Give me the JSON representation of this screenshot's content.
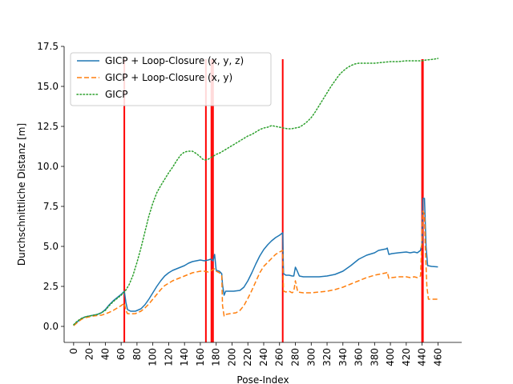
{
  "chart_data": {
    "type": "line",
    "xlabel": "Pose-Index",
    "ylabel": "Durchschnittliche Distanz [m]",
    "xlim": [
      -12,
      490
    ],
    "ylim": [
      -1.0,
      17.5
    ],
    "xticks": [
      0,
      20,
      40,
      60,
      80,
      100,
      120,
      140,
      160,
      180,
      200,
      220,
      240,
      260,
      280,
      300,
      320,
      340,
      360,
      380,
      400,
      420,
      440,
      460
    ],
    "yticks": [
      0.0,
      2.5,
      5.0,
      7.5,
      10.0,
      12.5,
      15.0,
      17.5
    ],
    "ytick_labels": [
      "0.0",
      "2.5",
      "5.0",
      "7.5",
      "10.0",
      "12.5",
      "15.0",
      "17.5"
    ],
    "legend_position": "upper-left",
    "series": [
      {
        "name": "GICP + Loop-Closure (x, y, z)",
        "color": "#1f77b4",
        "style": "solid",
        "points": [
          [
            0,
            0.1
          ],
          [
            5,
            0.3
          ],
          [
            10,
            0.5
          ],
          [
            15,
            0.6
          ],
          [
            20,
            0.65
          ],
          [
            25,
            0.7
          ],
          [
            30,
            0.75
          ],
          [
            35,
            0.85
          ],
          [
            40,
            1.05
          ],
          [
            45,
            1.35
          ],
          [
            50,
            1.6
          ],
          [
            55,
            1.8
          ],
          [
            60,
            2.0
          ],
          [
            64,
            2.2
          ],
          [
            66,
            1.5
          ],
          [
            68,
            1.05
          ],
          [
            72,
            0.95
          ],
          [
            78,
            0.95
          ],
          [
            85,
            1.1
          ],
          [
            90,
            1.35
          ],
          [
            95,
            1.7
          ],
          [
            100,
            2.1
          ],
          [
            105,
            2.5
          ],
          [
            110,
            2.85
          ],
          [
            115,
            3.15
          ],
          [
            120,
            3.35
          ],
          [
            125,
            3.5
          ],
          [
            130,
            3.6
          ],
          [
            135,
            3.7
          ],
          [
            140,
            3.8
          ],
          [
            145,
            3.95
          ],
          [
            150,
            4.05
          ],
          [
            155,
            4.1
          ],
          [
            160,
            4.15
          ],
          [
            165,
            4.1
          ],
          [
            170,
            4.15
          ],
          [
            173,
            4.2
          ],
          [
            176,
            4.1
          ],
          [
            178,
            4.5
          ],
          [
            180,
            3.5
          ],
          [
            184,
            3.45
          ],
          [
            187,
            3.3
          ],
          [
            188,
            2.6
          ],
          [
            190,
            1.95
          ],
          [
            192,
            2.2
          ],
          [
            196,
            2.2
          ],
          [
            202,
            2.2
          ],
          [
            210,
            2.25
          ],
          [
            215,
            2.45
          ],
          [
            220,
            2.85
          ],
          [
            225,
            3.35
          ],
          [
            230,
            3.9
          ],
          [
            235,
            4.4
          ],
          [
            240,
            4.8
          ],
          [
            245,
            5.1
          ],
          [
            250,
            5.35
          ],
          [
            255,
            5.55
          ],
          [
            260,
            5.7
          ],
          [
            264,
            5.85
          ],
          [
            265,
            3.3
          ],
          [
            268,
            3.2
          ],
          [
            272,
            3.2
          ],
          [
            276,
            3.15
          ],
          [
            278,
            3.15
          ],
          [
            280,
            3.7
          ],
          [
            282,
            3.5
          ],
          [
            285,
            3.15
          ],
          [
            290,
            3.1
          ],
          [
            300,
            3.1
          ],
          [
            310,
            3.1
          ],
          [
            320,
            3.15
          ],
          [
            330,
            3.25
          ],
          [
            340,
            3.45
          ],
          [
            350,
            3.8
          ],
          [
            360,
            4.2
          ],
          [
            370,
            4.45
          ],
          [
            380,
            4.6
          ],
          [
            385,
            4.75
          ],
          [
            390,
            4.8
          ],
          [
            395,
            4.85
          ],
          [
            396,
            4.9
          ],
          [
            398,
            4.5
          ],
          [
            402,
            4.55
          ],
          [
            410,
            4.6
          ],
          [
            420,
            4.65
          ],
          [
            425,
            4.6
          ],
          [
            430,
            4.65
          ],
          [
            434,
            4.6
          ],
          [
            438,
            4.75
          ],
          [
            440,
            5.2
          ],
          [
            441,
            8.0
          ],
          [
            443,
            8.0
          ],
          [
            445,
            5.0
          ],
          [
            447,
            3.8
          ],
          [
            452,
            3.75
          ],
          [
            460,
            3.72
          ]
        ]
      },
      {
        "name": "GICP + Loop-Closure (x, y)",
        "color": "#ff7f0e",
        "style": "dashed",
        "points": [
          [
            0,
            0.05
          ],
          [
            5,
            0.25
          ],
          [
            10,
            0.45
          ],
          [
            15,
            0.55
          ],
          [
            20,
            0.6
          ],
          [
            25,
            0.65
          ],
          [
            30,
            0.68
          ],
          [
            35,
            0.7
          ],
          [
            40,
            0.78
          ],
          [
            45,
            0.88
          ],
          [
            50,
            1.0
          ],
          [
            55,
            1.15
          ],
          [
            60,
            1.3
          ],
          [
            64,
            1.45
          ],
          [
            66,
            1.0
          ],
          [
            68,
            0.8
          ],
          [
            72,
            0.78
          ],
          [
            78,
            0.8
          ],
          [
            85,
            0.95
          ],
          [
            90,
            1.15
          ],
          [
            95,
            1.4
          ],
          [
            100,
            1.7
          ],
          [
            105,
            2.0
          ],
          [
            110,
            2.3
          ],
          [
            115,
            2.55
          ],
          [
            120,
            2.7
          ],
          [
            125,
            2.85
          ],
          [
            130,
            2.95
          ],
          [
            135,
            3.05
          ],
          [
            140,
            3.15
          ],
          [
            145,
            3.25
          ],
          [
            150,
            3.35
          ],
          [
            155,
            3.4
          ],
          [
            160,
            3.45
          ],
          [
            165,
            3.45
          ],
          [
            170,
            3.4
          ],
          [
            174,
            3.5
          ],
          [
            176,
            3.55
          ],
          [
            178,
            3.6
          ],
          [
            180,
            3.45
          ],
          [
            184,
            3.35
          ],
          [
            187,
            3.2
          ],
          [
            188,
            1.3
          ],
          [
            190,
            0.65
          ],
          [
            192,
            0.75
          ],
          [
            198,
            0.8
          ],
          [
            205,
            0.85
          ],
          [
            210,
            1.0
          ],
          [
            215,
            1.3
          ],
          [
            220,
            1.75
          ],
          [
            225,
            2.25
          ],
          [
            230,
            2.8
          ],
          [
            235,
            3.35
          ],
          [
            240,
            3.75
          ],
          [
            245,
            4.0
          ],
          [
            250,
            4.25
          ],
          [
            255,
            4.5
          ],
          [
            260,
            4.65
          ],
          [
            264,
            4.75
          ],
          [
            265,
            2.2
          ],
          [
            268,
            2.15
          ],
          [
            272,
            2.2
          ],
          [
            276,
            2.1
          ],
          [
            278,
            2.2
          ],
          [
            280,
            2.85
          ],
          [
            283,
            2.15
          ],
          [
            290,
            2.1
          ],
          [
            300,
            2.1
          ],
          [
            310,
            2.15
          ],
          [
            320,
            2.2
          ],
          [
            330,
            2.3
          ],
          [
            340,
            2.45
          ],
          [
            350,
            2.65
          ],
          [
            360,
            2.85
          ],
          [
            370,
            3.05
          ],
          [
            380,
            3.2
          ],
          [
            390,
            3.3
          ],
          [
            395,
            3.35
          ],
          [
            396,
            3.4
          ],
          [
            398,
            3.0
          ],
          [
            402,
            3.05
          ],
          [
            410,
            3.1
          ],
          [
            420,
            3.1
          ],
          [
            425,
            3.05
          ],
          [
            430,
            3.1
          ],
          [
            434,
            3.05
          ],
          [
            438,
            3.15
          ],
          [
            440,
            5.8
          ],
          [
            441,
            7.2
          ],
          [
            443,
            7.0
          ],
          [
            444,
            5.0
          ],
          [
            446,
            2.5
          ],
          [
            448,
            1.7
          ],
          [
            452,
            1.7
          ],
          [
            460,
            1.7
          ]
        ]
      },
      {
        "name": "GICP",
        "color": "#2ca02c",
        "style": "dotted",
        "points": [
          [
            0,
            0.1
          ],
          [
            5,
            0.35
          ],
          [
            10,
            0.5
          ],
          [
            15,
            0.6
          ],
          [
            20,
            0.65
          ],
          [
            25,
            0.7
          ],
          [
            30,
            0.75
          ],
          [
            35,
            0.85
          ],
          [
            40,
            1.0
          ],
          [
            45,
            1.3
          ],
          [
            50,
            1.55
          ],
          [
            55,
            1.75
          ],
          [
            60,
            1.95
          ],
          [
            65,
            2.2
          ],
          [
            70,
            2.6
          ],
          [
            75,
            3.2
          ],
          [
            80,
            4.0
          ],
          [
            85,
            4.9
          ],
          [
            90,
            5.9
          ],
          [
            95,
            6.9
          ],
          [
            100,
            7.7
          ],
          [
            105,
            8.35
          ],
          [
            110,
            8.8
          ],
          [
            115,
            9.2
          ],
          [
            120,
            9.6
          ],
          [
            125,
            9.95
          ],
          [
            130,
            10.35
          ],
          [
            135,
            10.7
          ],
          [
            140,
            10.9
          ],
          [
            145,
            10.95
          ],
          [
            150,
            10.95
          ],
          [
            155,
            10.8
          ],
          [
            160,
            10.6
          ],
          [
            163,
            10.45
          ],
          [
            166,
            10.4
          ],
          [
            170,
            10.45
          ],
          [
            175,
            10.6
          ],
          [
            180,
            10.75
          ],
          [
            185,
            10.85
          ],
          [
            190,
            11.0
          ],
          [
            195,
            11.15
          ],
          [
            200,
            11.3
          ],
          [
            205,
            11.45
          ],
          [
            210,
            11.6
          ],
          [
            215,
            11.75
          ],
          [
            220,
            11.9
          ],
          [
            225,
            12.0
          ],
          [
            230,
            12.15
          ],
          [
            235,
            12.3
          ],
          [
            240,
            12.4
          ],
          [
            245,
            12.45
          ],
          [
            250,
            12.55
          ],
          [
            255,
            12.5
          ],
          [
            260,
            12.45
          ],
          [
            265,
            12.4
          ],
          [
            270,
            12.35
          ],
          [
            275,
            12.35
          ],
          [
            280,
            12.4
          ],
          [
            285,
            12.45
          ],
          [
            290,
            12.6
          ],
          [
            295,
            12.8
          ],
          [
            300,
            13.05
          ],
          [
            305,
            13.4
          ],
          [
            310,
            13.8
          ],
          [
            315,
            14.2
          ],
          [
            320,
            14.6
          ],
          [
            325,
            15.0
          ],
          [
            330,
            15.35
          ],
          [
            335,
            15.7
          ],
          [
            340,
            15.95
          ],
          [
            345,
            16.15
          ],
          [
            350,
            16.3
          ],
          [
            355,
            16.4
          ],
          [
            360,
            16.45
          ],
          [
            370,
            16.45
          ],
          [
            380,
            16.45
          ],
          [
            390,
            16.5
          ],
          [
            400,
            16.55
          ],
          [
            410,
            16.55
          ],
          [
            420,
            16.6
          ],
          [
            430,
            16.6
          ],
          [
            440,
            16.6
          ],
          [
            445,
            16.65
          ],
          [
            455,
            16.7
          ],
          [
            460,
            16.75
          ]
        ]
      }
    ],
    "vlines": {
      "color": "#ff0000",
      "x": [
        64,
        167,
        174,
        176,
        264,
        440,
        441
      ],
      "y_from": -1.0,
      "y_to": 16.7
    }
  }
}
